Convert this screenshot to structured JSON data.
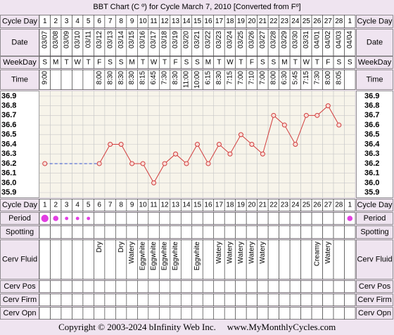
{
  "title": "BBT Chart (C º) for Cycle March 7, 2010  [Converted from Fº]",
  "row_labels": {
    "cycle_day": "Cycle Day",
    "date": "Date",
    "weekday": "WeekDay",
    "time": "Time",
    "period": "Period",
    "spotting": "Spotting",
    "cerv_fluid": "Cerv Fluid",
    "cerv_pos": "Cerv Pos",
    "cerv_firm": "Cerv Firm",
    "cerv_opn": "Cerv Opn"
  },
  "chart_data": {
    "type": "line",
    "categories": [
      1,
      2,
      3,
      4,
      5,
      6,
      7,
      8,
      9,
      10,
      11,
      12,
      13,
      14,
      15,
      16,
      17,
      18,
      19,
      20,
      21,
      22,
      23,
      24,
      25,
      26,
      27,
      28,
      1
    ],
    "values": [
      36.2,
      null,
      null,
      null,
      null,
      36.2,
      36.4,
      36.4,
      36.2,
      36.2,
      36.0,
      36.2,
      36.3,
      36.2,
      36.4,
      36.2,
      36.4,
      36.3,
      36.5,
      36.4,
      36.3,
      36.7,
      36.6,
      36.4,
      36.7,
      36.7,
      36.8,
      36.6,
      null
    ],
    "color": "#d23c3c",
    "ylim": [
      35.85,
      36.95
    ],
    "yticks": [
      {
        "value": 35.9,
        "label": "35.9"
      },
      {
        "value": 36.0,
        "label": "36.0"
      },
      {
        "value": 36.1,
        "label": "36.1"
      },
      {
        "value": 36.2,
        "label": "36.2"
      },
      {
        "value": 36.3,
        "label": "36.3"
      },
      {
        "value": 36.4,
        "label": "36.4"
      },
      {
        "value": 36.5,
        "label": "36.5"
      },
      {
        "value": 36.6,
        "label": "36.6"
      },
      {
        "value": 36.7,
        "label": "36.7"
      },
      {
        "value": 36.8,
        "label": "36.8"
      },
      {
        "value": 36.9,
        "label": "36.9"
      }
    ],
    "grid": true
  },
  "table": {
    "dates": [
      "03/07",
      "03/08",
      "03/09",
      "03/10",
      "03/11",
      "03/12",
      "03/13",
      "03/14",
      "03/15",
      "03/16",
      "03/17",
      "03/18",
      "03/19",
      "03/20",
      "03/21",
      "03/22",
      "03/23",
      "03/24",
      "03/25",
      "03/26",
      "03/27",
      "03/28",
      "03/29",
      "03/30",
      "03/31",
      "04/01",
      "04/02",
      "04/03",
      "04/04"
    ],
    "weekdays": [
      "S",
      "M",
      "T",
      "W",
      "T",
      "F",
      "S",
      "S",
      "M",
      "T",
      "W",
      "T",
      "F",
      "S",
      "S",
      "M",
      "T",
      "W",
      "T",
      "F",
      "S",
      "S",
      "M",
      "T",
      "W",
      "T",
      "F",
      "S",
      "S"
    ],
    "times": [
      "9:00",
      null,
      null,
      null,
      null,
      "8:00",
      "8:30",
      "8:30",
      "8:30",
      "8:15",
      "6:45",
      "7:30",
      "8:30",
      "11:00",
      "10:00",
      "6:15",
      "8:30",
      "7:15",
      "7:00",
      "7:10",
      "7:00",
      "8:00",
      "6:30",
      "5:45",
      "7:15",
      "7:30",
      "8:00",
      "8:05",
      null
    ],
    "period": [
      3,
      2,
      1,
      1,
      1,
      null,
      null,
      null,
      null,
      null,
      null,
      null,
      null,
      null,
      null,
      null,
      null,
      null,
      null,
      null,
      null,
      null,
      null,
      null,
      null,
      null,
      null,
      null,
      2
    ],
    "period_color": "#e23ee2",
    "cerv_fluid": [
      null,
      null,
      null,
      null,
      null,
      "Dry",
      null,
      "Dry",
      "Watery",
      "Eggwhite",
      "Eggwhite",
      "Eggwhite",
      "Eggwhite",
      null,
      "Eggwhite",
      null,
      "Watery",
      "Watery",
      "Watery",
      "Watery",
      "Watery",
      null,
      null,
      null,
      null,
      "Creamy",
      "Watery",
      null,
      null
    ]
  },
  "footer": {
    "copyright": "Copyright © 2003-2024 bInfinity Web Inc.",
    "url": "www.MyMonthlyCycles.com"
  }
}
